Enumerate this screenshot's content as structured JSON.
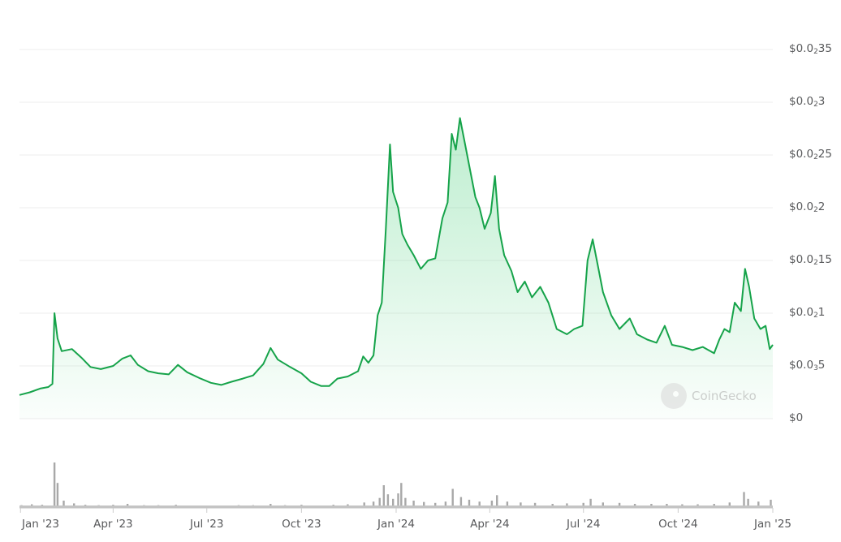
{
  "chart_data": {
    "type": "area",
    "title": "",
    "xlabel": "",
    "ylabel": "",
    "y_ticks": [
      {
        "value": 0,
        "pre": "$0",
        "sub": "",
        "post": ""
      },
      {
        "value": 5e-05,
        "pre": "$0.0",
        "sub": "3",
        "post": "5"
      },
      {
        "value": 0.0001,
        "pre": "$0.0",
        "sub": "2",
        "post": "1"
      },
      {
        "value": 0.00015,
        "pre": "$0.0",
        "sub": "2",
        "post": "15"
      },
      {
        "value": 0.0002,
        "pre": "$0.0",
        "sub": "2",
        "post": "2"
      },
      {
        "value": 0.00025,
        "pre": "$0.0",
        "sub": "2",
        "post": "25"
      },
      {
        "value": 0.0003,
        "pre": "$0.0",
        "sub": "2",
        "post": "3"
      },
      {
        "value": 0.00035,
        "pre": "$0.0",
        "sub": "2",
        "post": "35"
      }
    ],
    "ylim": [
      0,
      0.00035
    ],
    "x_ticks": [
      {
        "date": "2023-01-01",
        "label": "Jan '23"
      },
      {
        "date": "2023-04-01",
        "label": "Apr '23"
      },
      {
        "date": "2023-07-01",
        "label": "Jul '23"
      },
      {
        "date": "2023-10-01",
        "label": "Oct '23"
      },
      {
        "date": "2024-01-01",
        "label": "Jan '24"
      },
      {
        "date": "2024-04-01",
        "label": "Apr '24"
      },
      {
        "date": "2024-07-01",
        "label": "Jul '24"
      },
      {
        "date": "2024-10-01",
        "label": "Oct '24"
      },
      {
        "date": "2025-01-01",
        "label": "Jan '25"
      }
    ],
    "xlim": [
      "2022-12-31",
      "2025-01-01"
    ],
    "grid": true,
    "series": [
      {
        "color": "#16a34a",
        "points": [
          [
            "2022-12-31",
            2.25e-05
          ],
          [
            "2023-01-10",
            2.5e-05
          ],
          [
            "2023-01-20",
            2.85e-05
          ],
          [
            "2023-01-28",
            3e-05
          ],
          [
            "2023-02-01",
            3.3e-05
          ],
          [
            "2023-02-03",
            0.0001
          ],
          [
            "2023-02-06",
            7.6e-05
          ],
          [
            "2023-02-10",
            6.4e-05
          ],
          [
            "2023-02-20",
            6.6e-05
          ],
          [
            "2023-03-01",
            5.8e-05
          ],
          [
            "2023-03-10",
            4.9e-05
          ],
          [
            "2023-03-20",
            4.7e-05
          ],
          [
            "2023-04-01",
            5e-05
          ],
          [
            "2023-04-10",
            5.7e-05
          ],
          [
            "2023-04-18",
            6e-05
          ],
          [
            "2023-04-25",
            5.1e-05
          ],
          [
            "2023-05-05",
            4.5e-05
          ],
          [
            "2023-05-15",
            4.3e-05
          ],
          [
            "2023-05-25",
            4.2e-05
          ],
          [
            "2023-06-03",
            5.1e-05
          ],
          [
            "2023-06-12",
            4.4e-05
          ],
          [
            "2023-06-25",
            3.8e-05
          ],
          [
            "2023-07-05",
            3.4e-05
          ],
          [
            "2023-07-15",
            3.2e-05
          ],
          [
            "2023-07-25",
            3.5e-05
          ],
          [
            "2023-08-05",
            3.8e-05
          ],
          [
            "2023-08-15",
            4.1e-05
          ],
          [
            "2023-08-25",
            5.2e-05
          ],
          [
            "2023-09-01",
            6.7e-05
          ],
          [
            "2023-09-08",
            5.6e-05
          ],
          [
            "2023-09-20",
            4.9e-05
          ],
          [
            "2023-10-01",
            4.3e-05
          ],
          [
            "2023-10-10",
            3.5e-05
          ],
          [
            "2023-10-20",
            3.1e-05
          ],
          [
            "2023-10-28",
            3.1e-05
          ],
          [
            "2023-11-05",
            3.8e-05
          ],
          [
            "2023-11-15",
            4e-05
          ],
          [
            "2023-11-25",
            4.5e-05
          ],
          [
            "2023-11-30",
            5.9e-05
          ],
          [
            "2023-12-05",
            5.3e-05
          ],
          [
            "2023-12-10",
            6e-05
          ],
          [
            "2023-12-14",
            9.8e-05
          ],
          [
            "2023-12-18",
            0.00011
          ],
          [
            "2023-12-22",
            0.00018
          ],
          [
            "2023-12-26",
            0.00026
          ],
          [
            "2023-12-29",
            0.000215
          ],
          [
            "2024-01-03",
            0.0002
          ],
          [
            "2024-01-07",
            0.000175
          ],
          [
            "2024-01-12",
            0.000165
          ],
          [
            "2024-01-18",
            0.000155
          ],
          [
            "2024-01-25",
            0.000142
          ],
          [
            "2024-02-01",
            0.00015
          ],
          [
            "2024-02-08",
            0.000152
          ],
          [
            "2024-02-15",
            0.00019
          ],
          [
            "2024-02-20",
            0.000205
          ],
          [
            "2024-02-24",
            0.00027
          ],
          [
            "2024-02-28",
            0.000255
          ],
          [
            "2024-03-03",
            0.000285
          ],
          [
            "2024-03-07",
            0.000265
          ],
          [
            "2024-03-12",
            0.00024
          ],
          [
            "2024-03-18",
            0.00021
          ],
          [
            "2024-03-22",
            0.0002
          ],
          [
            "2024-03-27",
            0.00018
          ],
          [
            "2024-04-02",
            0.000195
          ],
          [
            "2024-04-06",
            0.00023
          ],
          [
            "2024-04-10",
            0.00018
          ],
          [
            "2024-04-15",
            0.000155
          ],
          [
            "2024-04-22",
            0.00014
          ],
          [
            "2024-04-28",
            0.00012
          ],
          [
            "2024-05-05",
            0.00013
          ],
          [
            "2024-05-12",
            0.000115
          ],
          [
            "2024-05-20",
            0.000125
          ],
          [
            "2024-05-28",
            0.00011
          ],
          [
            "2024-06-05",
            8.5e-05
          ],
          [
            "2024-06-15",
            8e-05
          ],
          [
            "2024-06-22",
            8.5e-05
          ],
          [
            "2024-06-30",
            8.8e-05
          ],
          [
            "2024-07-05",
            0.00015
          ],
          [
            "2024-07-10",
            0.00017
          ],
          [
            "2024-07-15",
            0.000145
          ],
          [
            "2024-07-20",
            0.00012
          ],
          [
            "2024-07-28",
            9.8e-05
          ],
          [
            "2024-08-05",
            8.5e-05
          ],
          [
            "2024-08-15",
            9.5e-05
          ],
          [
            "2024-08-22",
            8e-05
          ],
          [
            "2024-09-01",
            7.5e-05
          ],
          [
            "2024-09-10",
            7.2e-05
          ],
          [
            "2024-09-18",
            8.8e-05
          ],
          [
            "2024-09-25",
            7e-05
          ],
          [
            "2024-10-05",
            6.8e-05
          ],
          [
            "2024-10-15",
            6.5e-05
          ],
          [
            "2024-10-25",
            6.8e-05
          ],
          [
            "2024-11-05",
            6.2e-05
          ],
          [
            "2024-11-10",
            7.5e-05
          ],
          [
            "2024-11-15",
            8.5e-05
          ],
          [
            "2024-11-20",
            8.2e-05
          ],
          [
            "2024-11-25",
            0.00011
          ],
          [
            "2024-12-01",
            0.000102
          ],
          [
            "2024-12-05",
            0.000142
          ],
          [
            "2024-12-09",
            0.000125
          ],
          [
            "2024-12-14",
            9.5e-05
          ],
          [
            "2024-12-20",
            8.5e-05
          ],
          [
            "2024-12-25",
            8.8e-05
          ],
          [
            "2024-12-29",
            6.6e-05
          ],
          [
            "2025-01-01",
            7e-05
          ]
        ]
      }
    ],
    "volume_bars": [
      [
        "2023-01-02",
        0.06
      ],
      [
        "2023-01-12",
        0.08
      ],
      [
        "2023-01-22",
        0.07
      ],
      [
        "2023-02-03",
        1.0
      ],
      [
        "2023-02-06",
        0.55
      ],
      [
        "2023-02-12",
        0.16
      ],
      [
        "2023-02-22",
        0.1
      ],
      [
        "2023-03-05",
        0.07
      ],
      [
        "2023-03-18",
        0.06
      ],
      [
        "2023-04-01",
        0.07
      ],
      [
        "2023-04-15",
        0.09
      ],
      [
        "2023-05-01",
        0.06
      ],
      [
        "2023-05-15",
        0.06
      ],
      [
        "2023-06-01",
        0.07
      ],
      [
        "2023-06-15",
        0.05
      ],
      [
        "2023-07-01",
        0.05
      ],
      [
        "2023-07-15",
        0.05
      ],
      [
        "2023-08-01",
        0.06
      ],
      [
        "2023-08-15",
        0.06
      ],
      [
        "2023-09-01",
        0.09
      ],
      [
        "2023-09-15",
        0.06
      ],
      [
        "2023-10-01",
        0.07
      ],
      [
        "2023-10-15",
        0.05
      ],
      [
        "2023-11-01",
        0.07
      ],
      [
        "2023-11-15",
        0.08
      ],
      [
        "2023-12-01",
        0.12
      ],
      [
        "2023-12-10",
        0.14
      ],
      [
        "2023-12-16",
        0.22
      ],
      [
        "2023-12-20",
        0.5
      ],
      [
        "2023-12-24",
        0.3
      ],
      [
        "2023-12-29",
        0.2
      ],
      [
        "2024-01-03",
        0.32
      ],
      [
        "2024-01-06",
        0.55
      ],
      [
        "2024-01-10",
        0.22
      ],
      [
        "2024-01-18",
        0.16
      ],
      [
        "2024-01-28",
        0.13
      ],
      [
        "2024-02-08",
        0.11
      ],
      [
        "2024-02-18",
        0.14
      ],
      [
        "2024-02-25",
        0.42
      ],
      [
        "2024-03-04",
        0.24
      ],
      [
        "2024-03-12",
        0.18
      ],
      [
        "2024-03-22",
        0.14
      ],
      [
        "2024-04-03",
        0.16
      ],
      [
        "2024-04-08",
        0.28
      ],
      [
        "2024-04-18",
        0.14
      ],
      [
        "2024-05-01",
        0.12
      ],
      [
        "2024-05-15",
        0.11
      ],
      [
        "2024-06-01",
        0.09
      ],
      [
        "2024-06-15",
        0.1
      ],
      [
        "2024-07-01",
        0.11
      ],
      [
        "2024-07-08",
        0.2
      ],
      [
        "2024-07-20",
        0.12
      ],
      [
        "2024-08-05",
        0.11
      ],
      [
        "2024-08-20",
        0.09
      ],
      [
        "2024-09-05",
        0.09
      ],
      [
        "2024-09-20",
        0.09
      ],
      [
        "2024-10-05",
        0.08
      ],
      [
        "2024-10-20",
        0.08
      ],
      [
        "2024-11-05",
        0.09
      ],
      [
        "2024-11-20",
        0.12
      ],
      [
        "2024-12-04",
        0.35
      ],
      [
        "2024-12-08",
        0.2
      ],
      [
        "2024-12-18",
        0.14
      ],
      [
        "2024-12-30",
        0.18
      ]
    ]
  },
  "watermark": {
    "text": "CoinGecko",
    "icon": "gecko-logo-icon"
  }
}
